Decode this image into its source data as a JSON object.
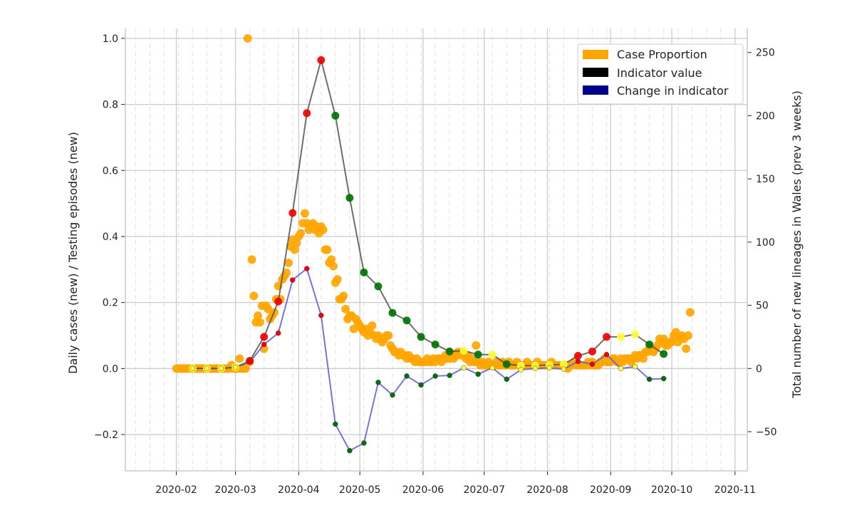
{
  "chart_data": {
    "type": "scatter+line",
    "title": "",
    "xlabel": "",
    "ylabel_left": "Daily cases (new) / Testing episodes (new)",
    "ylabel_right": "Total number of new lineages in Wales (prev 3 weeks)",
    "xlim": [
      "2020-01-07",
      "2020-11-07"
    ],
    "ylim_left": [
      -0.31,
      1.03
    ],
    "ylim_right": [
      -81,
      269
    ],
    "x_ticks": [
      "2020-02",
      "2020-03",
      "2020-04",
      "2020-05",
      "2020-06",
      "2020-07",
      "2020-08",
      "2020-09",
      "2020-10",
      "2020-11"
    ],
    "y_ticks_left": [
      "1.0",
      "0.8",
      "0.6",
      "0.4",
      "0.2",
      "0.0",
      "−0.2"
    ],
    "y_ticks_left_values": [
      1.0,
      0.8,
      0.6,
      0.4,
      0.2,
      0.0,
      -0.2
    ],
    "y_ticks_right": [
      "250",
      "200",
      "150",
      "100",
      "50",
      "0",
      "−50"
    ],
    "y_ticks_right_values": [
      250,
      200,
      150,
      100,
      50,
      0,
      -50
    ],
    "grid": true,
    "weekly_minor_grid": "dashed",
    "legend_placement": "top-right",
    "legend": [
      {
        "label": "Case Proportion",
        "color": "#ffa500"
      },
      {
        "label": "Indicator value",
        "color": "#000000"
      },
      {
        "label": "Change in indicator",
        "color": "#00008b"
      }
    ],
    "point_colors": {
      "increase": "#ee0000",
      "decrease": "#007000",
      "stable": "#ffff33"
    },
    "case_proportion_daily_by_month": {
      "axis": "left",
      "color": "#ffa500",
      "2020-02": [
        0,
        0,
        0,
        0,
        0,
        0,
        0,
        0,
        0,
        0,
        0,
        0,
        0,
        0,
        0,
        0,
        0,
        0,
        0,
        0,
        0,
        0,
        0,
        0,
        0,
        0,
        0,
        0.01,
        0
      ],
      "2020-03": [
        0,
        0,
        0.03,
        0,
        0,
        0,
        1.0,
        0.02,
        0.33,
        0.22,
        0.14,
        0.16,
        0.14,
        0.19,
        0.06,
        0.19,
        0.18,
        0.15,
        0.16,
        0.17,
        0.21,
        0.25,
        0.21,
        0.27,
        0.28,
        0.29,
        0.32,
        0.37,
        0.39,
        0.36,
        0.38
      ],
      "2020-04": [
        0.4,
        0.41,
        0.44,
        0.47,
        0.44,
        0.42,
        0.43,
        0.44,
        0.42,
        0.43,
        0.41,
        0.43,
        0.42,
        0.36,
        0.36,
        0.32,
        0.33,
        0.31,
        0.26,
        0.27,
        0.21,
        0.21,
        0.22,
        0.18,
        0.15,
        0.16,
        0.16,
        0.12,
        0.15,
        0.14
      ],
      "2020-05": [
        0.13,
        0.12,
        0.11,
        0.12,
        0.1,
        0.11,
        0.13,
        0.1,
        0.09,
        0.1,
        0.09,
        0.08,
        0.09,
        0.1,
        0.1,
        0.07,
        0.06,
        0.05,
        0.05,
        0.04,
        0.05,
        0.04,
        0.04,
        0.03,
        0.04,
        0.03,
        0.03,
        0.02,
        0.03,
        0.02,
        0.02
      ],
      "2020-06": [
        0.02,
        0.02,
        0.03,
        0.02,
        0.02,
        0.03,
        0.02,
        0.03,
        0.03,
        0.02,
        0.03,
        0.04,
        0.03,
        0.03,
        0.04,
        0.03,
        0.04,
        0.05,
        0.04,
        0.05,
        0.04,
        0.03,
        0.04,
        0.02,
        0.03,
        0.02,
        0.07,
        0.02,
        0.01,
        0.02
      ],
      "2020-07": [
        0.01,
        0.01,
        0.02,
        0.01,
        0.01,
        0.01,
        0.02,
        0.01,
        0.01,
        0.02,
        0.01,
        0.01,
        0.02,
        0.01,
        0.01,
        0.01,
        0.02,
        0.01,
        0.01,
        0.01,
        0.01,
        0.02,
        0.01,
        0.01,
        0.01,
        0.01,
        0.02,
        0.01,
        0.01,
        0.01,
        0.01
      ],
      "2020-08": [
        0.01,
        0.01,
        0.02,
        0.01,
        0.01,
        0.01,
        0.01,
        0.01,
        0.01,
        0.01,
        0.0,
        0.01,
        0.01,
        0.02,
        0.01,
        0.01,
        0.01,
        0.01,
        0.01,
        0.01,
        0.02,
        0.01,
        0.02,
        0.01,
        0.01,
        0.01,
        0.02,
        0.02,
        0.03,
        0.02,
        0.02
      ],
      "2020-09": [
        0.02,
        0.03,
        0.03,
        0.02,
        0.02,
        0.03,
        0.02,
        0.03,
        0.03,
        0.03,
        0.02,
        0.03,
        0.04,
        0.03,
        0.04,
        0.04,
        0.03,
        0.05,
        0.05,
        0.06,
        0.06,
        0.05,
        0.06,
        0.07,
        0.09,
        0.08,
        0.09,
        0.07,
        0.07,
        0.08
      ],
      "2020-10": [
        0.08,
        0.1,
        0.11,
        0.08,
        0.09,
        0.1,
        0.09,
        0.06,
        0.1,
        0.17
      ]
    },
    "weekly": {
      "axis": "right",
      "dates": [
        "2020-02-09",
        "2020-02-16",
        "2020-02-23",
        "2020-03-01",
        "2020-03-08",
        "2020-03-15",
        "2020-03-22",
        "2020-03-29",
        "2020-04-05",
        "2020-04-12",
        "2020-04-19",
        "2020-04-26",
        "2020-05-03",
        "2020-05-10",
        "2020-05-17",
        "2020-05-24",
        "2020-05-31",
        "2020-06-07",
        "2020-06-14",
        "2020-06-21",
        "2020-06-28",
        "2020-07-05",
        "2020-07-12",
        "2020-07-19",
        "2020-07-26",
        "2020-08-02",
        "2020-08-09",
        "2020-08-16",
        "2020-08-23",
        "2020-08-30",
        "2020-09-06",
        "2020-09-13",
        "2020-09-20",
        "2020-09-27"
      ],
      "indicator_value": [
        0,
        0,
        0,
        1,
        6,
        25,
        53,
        123,
        202,
        244,
        200,
        135,
        76,
        65,
        44,
        38,
        25,
        19,
        13.5,
        14,
        11,
        11,
        3.4,
        2.3,
        2.3,
        2.8,
        3.4,
        10,
        13.5,
        25,
        25,
        27,
        19,
        11.5
      ],
      "change_in_indicator": [
        0,
        0,
        0,
        1,
        5,
        19,
        28,
        70,
        79,
        42,
        -44,
        -65,
        -59,
        -11,
        -21,
        -6,
        -13,
        -6,
        -5.5,
        0.5,
        -4.5,
        0.5,
        -8.5,
        -1,
        0,
        0.5,
        -0.5,
        5.6,
        3.4,
        11,
        0,
        1.5,
        -8.5,
        -8
      ],
      "trend": [
        "stable",
        "stable",
        "stable",
        "stable",
        "increase",
        "increase",
        "increase",
        "increase",
        "increase",
        "increase",
        "decrease",
        "decrease",
        "decrease",
        "decrease",
        "decrease",
        "decrease",
        "decrease",
        "decrease",
        "decrease",
        "stable",
        "decrease",
        "stable",
        "decrease",
        "stable",
        "stable",
        "stable",
        "stable",
        "increase",
        "increase",
        "increase",
        "stable",
        "stable",
        "decrease",
        "decrease"
      ],
      "indicator_line_color": "#555555",
      "change_line_color": "#6666cc"
    }
  }
}
